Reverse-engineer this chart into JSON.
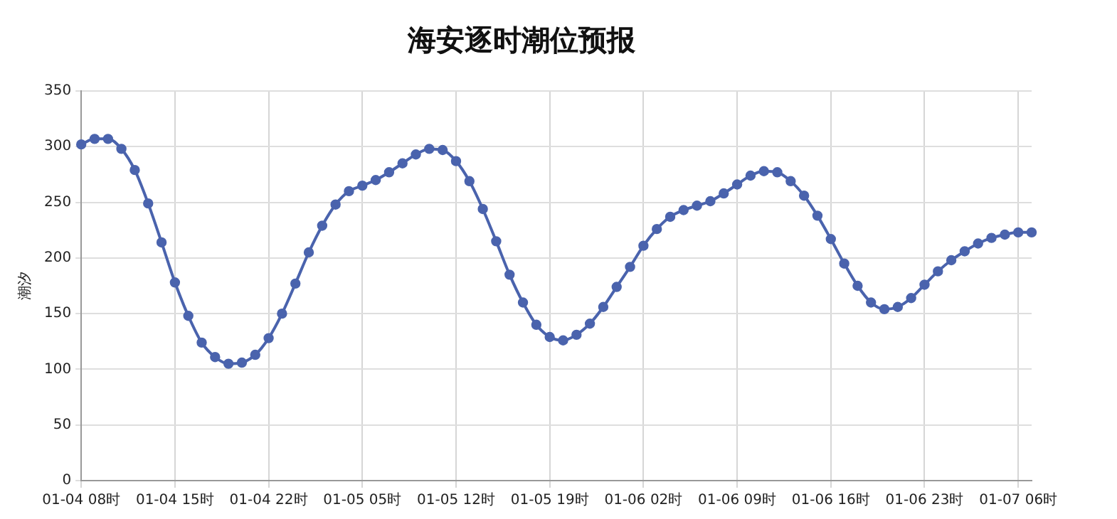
{
  "chart_data": {
    "type": "line",
    "title": "海安逐时潮位预报",
    "ylabel": "潮汐",
    "categories": [
      "01-04 08时",
      null,
      null,
      null,
      null,
      null,
      null,
      "01-04 15时",
      null,
      null,
      null,
      null,
      null,
      null,
      "01-04 22时",
      null,
      null,
      null,
      null,
      null,
      null,
      "01-05 05时",
      null,
      null,
      null,
      null,
      null,
      null,
      "01-05 12时",
      null,
      null,
      null,
      null,
      null,
      null,
      "01-05 19时",
      null,
      null,
      null,
      null,
      null,
      null,
      "01-06 02时",
      null,
      null,
      null,
      null,
      null,
      null,
      "01-06 09时",
      null,
      null,
      null,
      null,
      null,
      null,
      "01-06 16时",
      null,
      null,
      null,
      null,
      null,
      null,
      "01-06 23时",
      null,
      null,
      null,
      null,
      null,
      null,
      "01-07 06时",
      null
    ],
    "series": [
      {
        "color": "#4a63ad",
        "values": [
          302,
          307,
          307,
          298,
          279,
          249,
          214,
          178,
          148,
          124,
          111,
          105,
          106,
          113,
          128,
          150,
          177,
          205,
          229,
          248,
          260,
          265,
          270,
          277,
          285,
          293,
          298,
          297,
          287,
          269,
          244,
          215,
          185,
          160,
          140,
          129,
          126,
          131,
          141,
          156,
          174,
          192,
          211,
          226,
          237,
          243,
          247,
          251,
          258,
          266,
          274,
          278,
          277,
          269,
          256,
          238,
          217,
          195,
          175,
          160,
          154,
          156,
          164,
          176,
          188,
          198,
          206,
          213,
          218,
          221,
          223,
          223
        ]
      }
    ],
    "ylim": [
      0,
      350
    ],
    "yticks": [
      0,
      50,
      100,
      150,
      200,
      250,
      300,
      350
    ],
    "grid": true,
    "marker": "circle"
  }
}
